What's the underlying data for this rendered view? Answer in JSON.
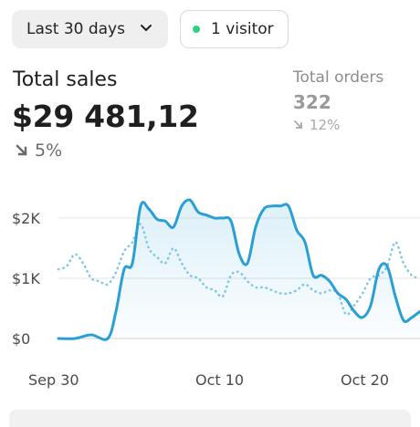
{
  "date_range": {
    "label": "Last 30 days",
    "icon": "chevron-down-icon"
  },
  "visitors": {
    "label": "1 visitor",
    "dot_color": "#2fcf86"
  },
  "total_sales": {
    "label": "Total sales",
    "value": "$29 481,12",
    "change": "5%",
    "change_direction": "down"
  },
  "total_orders": {
    "label": "Total orders",
    "value": "322",
    "change": "12%",
    "change_direction": "down"
  },
  "chart_data": {
    "type": "line",
    "ytick_labels": [
      "$2K",
      "$1K",
      "$0"
    ],
    "yticks": [
      2000,
      1000,
      0
    ],
    "ylim": [
      0,
      2000
    ],
    "xtick_labels": [
      "Sep 30",
      "Oct 10",
      "Oct 20"
    ],
    "xticks": [
      0,
      10,
      20
    ],
    "xlim": [
      0,
      22
    ],
    "grid": true,
    "series": [
      {
        "style": "solid",
        "color": "#2a9fd6",
        "x": [
          0,
          1,
          2,
          3,
          3.5,
          4,
          4.5,
          5,
          5.5,
          6,
          6.5,
          7,
          7.5,
          8,
          8.5,
          9,
          9.5,
          10,
          10.5,
          11,
          11.5,
          12,
          12.5,
          13,
          13.5,
          14,
          14.5,
          15,
          15.5,
          16,
          16.5,
          17,
          17.5,
          18,
          18.5,
          19,
          19.5,
          20,
          20.5,
          21,
          21.5,
          22
        ],
        "y": [
          0,
          0,
          60,
          0,
          450,
          1150,
          1250,
          2200,
          2150,
          1980,
          1950,
          1850,
          2200,
          2300,
          2100,
          2050,
          2000,
          2000,
          1950,
          1400,
          1250,
          1850,
          2150,
          2200,
          2200,
          2200,
          1800,
          1600,
          1050,
          1050,
          950,
          750,
          650,
          450,
          350,
          550,
          1150,
          1200,
          700,
          300,
          350,
          450
        ]
      },
      {
        "style": "dotted",
        "color": "#7cc8e6",
        "x": [
          0,
          0.5,
          1,
          1.5,
          2,
          2.5,
          3,
          3.5,
          4,
          4.5,
          5,
          5.5,
          6,
          6.5,
          7,
          7.5,
          8,
          8.5,
          9,
          9.5,
          10,
          10.5,
          11,
          11.5,
          12,
          12.5,
          13,
          13.5,
          14,
          14.5,
          15,
          15.5,
          16,
          16.5,
          17,
          17.5,
          18,
          18.5,
          19,
          19.5,
          20,
          20.5,
          21,
          21.5,
          22
        ],
        "y": [
          1150,
          1200,
          1400,
          1250,
          1000,
          950,
          900,
          1100,
          1450,
          1600,
          1900,
          1500,
          1350,
          1250,
          1500,
          1250,
          1050,
          1000,
          850,
          800,
          700,
          1050,
          1100,
          950,
          850,
          850,
          800,
          750,
          750,
          800,
          900,
          800,
          750,
          800,
          750,
          400,
          550,
          750,
          1000,
          1050,
          1200,
          1600,
          1250,
          1050,
          1000
        ]
      }
    ]
  }
}
